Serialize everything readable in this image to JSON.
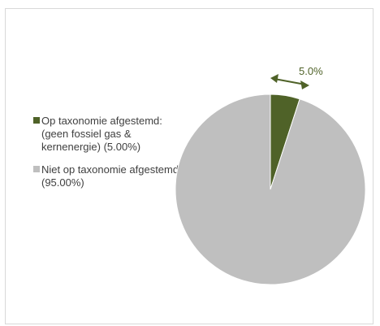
{
  "chart_data": {
    "type": "pie",
    "slices": [
      {
        "name": "Op taxonomie afgestemd: (geen fossiel gas & kernenergie) (5.00%)",
        "value": 5.0,
        "color": "#4f6228"
      },
      {
        "name": "Niet op taxonomie afgestemd (95.00%)",
        "value": 95.0,
        "color": "#bfbfbf"
      }
    ],
    "data_label": "5.0%",
    "legend_position": "left"
  }
}
